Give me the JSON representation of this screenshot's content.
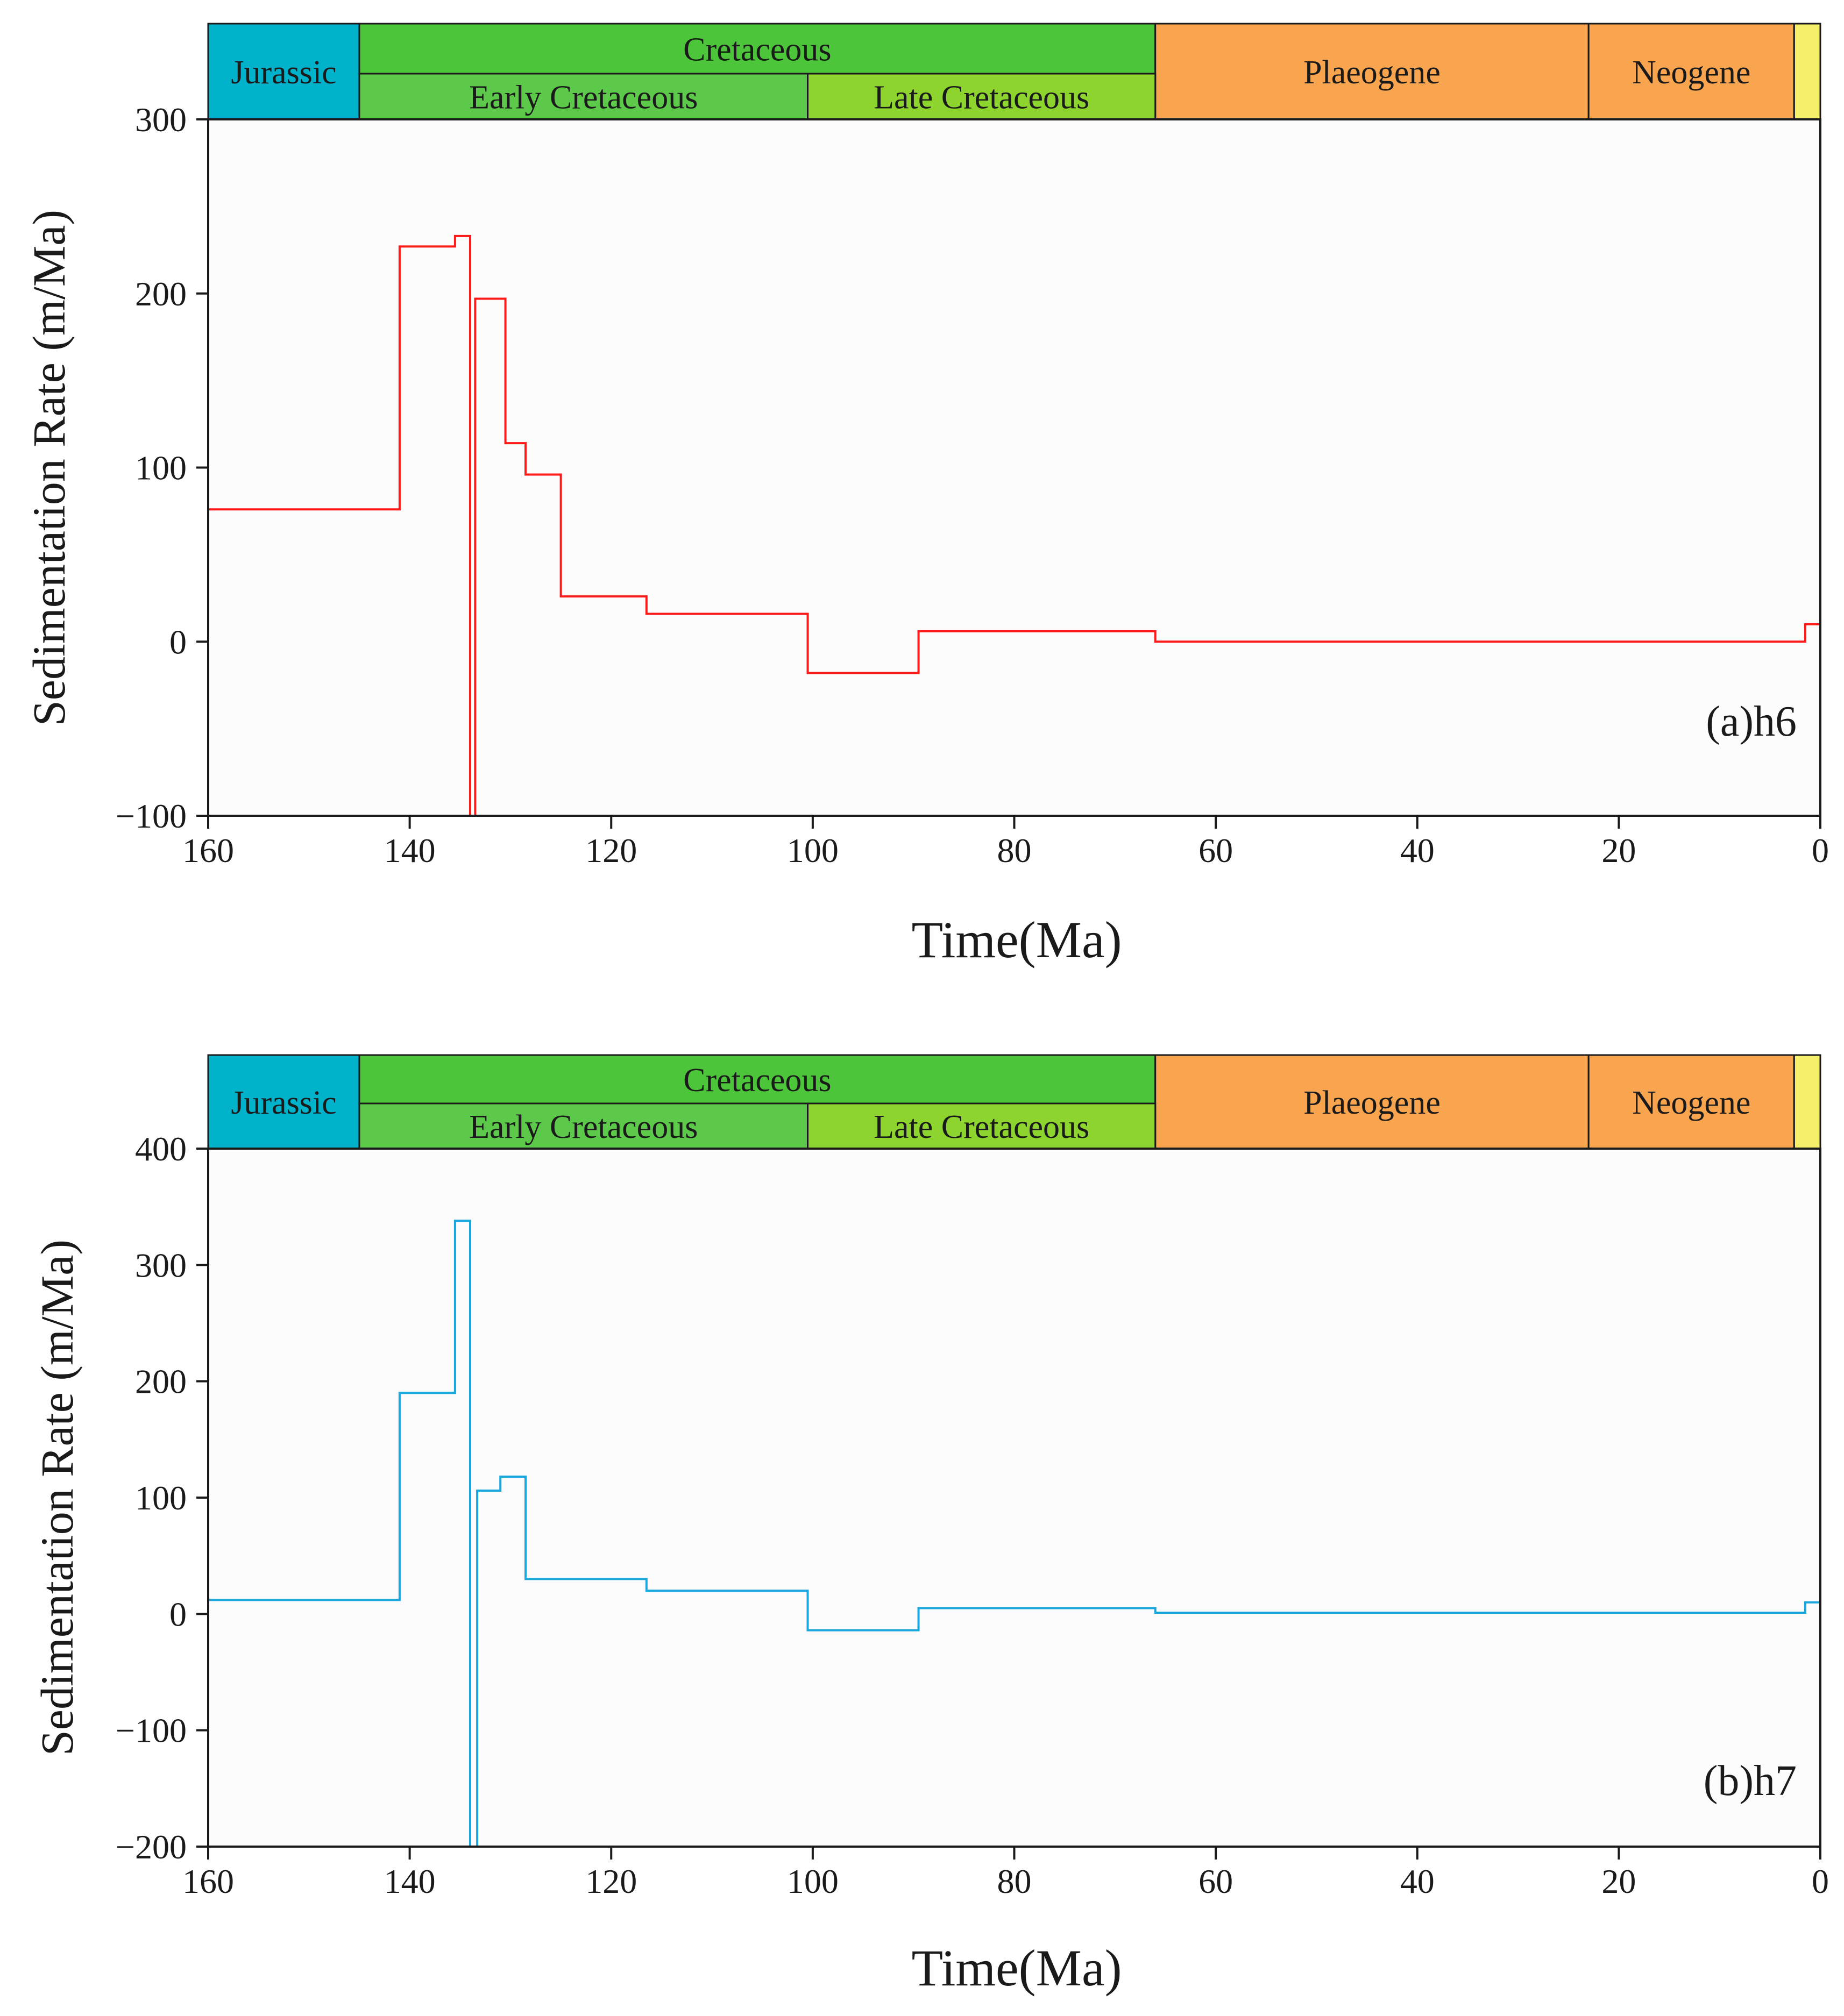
{
  "chart_data": [
    {
      "type": "line",
      "step": true,
      "title": "",
      "panel_label": "(a)h6",
      "xlabel": "Time(Ma)",
      "ylabel": "Sedimentation Rate (m/Ma)",
      "xlim": [
        160,
        0
      ],
      "ylim": [
        -100,
        300
      ],
      "xticks": [
        160,
        140,
        120,
        100,
        80,
        60,
        40,
        20,
        0
      ],
      "yticks": [
        300,
        200,
        100,
        0,
        -100
      ],
      "xtick_labels": [
        "160",
        "140",
        "120",
        "100",
        "80",
        "60",
        "40",
        "20",
        "0"
      ],
      "ytick_labels": [
        "300",
        "200",
        "100",
        "0",
        "−100"
      ],
      "color": "#ff1a1a",
      "series": [
        {
          "name": "h6",
          "steps": [
            {
              "from": 160,
              "to": 141,
              "value": 76
            },
            {
              "from": 141,
              "to": 135.5,
              "value": 227
            },
            {
              "from": 135.5,
              "to": 134,
              "value": 233
            },
            {
              "from": 134,
              "to": 133.5,
              "value": -100
            },
            {
              "from": 133.5,
              "to": 130.5,
              "value": 197
            },
            {
              "from": 130.5,
              "to": 128.5,
              "value": 114
            },
            {
              "from": 128.5,
              "to": 125,
              "value": 96
            },
            {
              "from": 125,
              "to": 116.5,
              "value": 26
            },
            {
              "from": 116.5,
              "to": 100.5,
              "value": 16
            },
            {
              "from": 100.5,
              "to": 89.5,
              "value": -18
            },
            {
              "from": 89.5,
              "to": 66,
              "value": 6
            },
            {
              "from": 66,
              "to": 1.5,
              "value": 0
            },
            {
              "from": 1.5,
              "to": 0,
              "value": 10
            }
          ]
        }
      ],
      "timescale": {
        "periods": [
          {
            "name": "Jurassic",
            "from": 160,
            "to": 145,
            "color": "#00b2ca"
          },
          {
            "name": "Cretaceous",
            "from": 145,
            "to": 66,
            "color": "#4cc53a"
          },
          {
            "name": "Plaeogene",
            "from": 66,
            "to": 23,
            "color": "#f9a54f"
          },
          {
            "name": "Neogene",
            "from": 23,
            "to": 2.6,
            "color": "#f9a54f"
          },
          {
            "name": "",
            "from": 2.6,
            "to": 0,
            "color": "#f5f06a"
          }
        ],
        "epochs": [
          {
            "name": "Early Cretaceous",
            "from": 145,
            "to": 100.5,
            "color": "#5cc94a"
          },
          {
            "name": "Late Cretaceous",
            "from": 100.5,
            "to": 66,
            "color": "#8dd42f"
          }
        ]
      }
    },
    {
      "type": "line",
      "step": true,
      "title": "",
      "panel_label": "(b)h7",
      "xlabel": "Time(Ma)",
      "ylabel": "Sedimentation Rate (m/Ma)",
      "xlim": [
        160,
        0
      ],
      "ylim": [
        -200,
        400
      ],
      "xticks": [
        160,
        140,
        120,
        100,
        80,
        60,
        40,
        20,
        0
      ],
      "yticks": [
        400,
        300,
        200,
        100,
        0,
        -100,
        -200
      ],
      "xtick_labels": [
        "160",
        "140",
        "120",
        "100",
        "80",
        "60",
        "40",
        "20",
        "0"
      ],
      "ytick_labels": [
        "400",
        "300",
        "200",
        "100",
        "0",
        "−100",
        "−200"
      ],
      "color": "#1aa7dd",
      "series": [
        {
          "name": "h7",
          "steps": [
            {
              "from": 160,
              "to": 141,
              "value": 12
            },
            {
              "from": 141,
              "to": 135.5,
              "value": 190
            },
            {
              "from": 135.5,
              "to": 134,
              "value": 338
            },
            {
              "from": 134,
              "to": 133.3,
              "value": -200
            },
            {
              "from": 133.3,
              "to": 131,
              "value": 106
            },
            {
              "from": 131,
              "to": 128.5,
              "value": 118
            },
            {
              "from": 128.5,
              "to": 116.5,
              "value": 30
            },
            {
              "from": 116.5,
              "to": 100.5,
              "value": 20
            },
            {
              "from": 100.5,
              "to": 89.5,
              "value": -14
            },
            {
              "from": 89.5,
              "to": 66,
              "value": 5
            },
            {
              "from": 66,
              "to": 1.5,
              "value": 1
            },
            {
              "from": 1.5,
              "to": 0,
              "value": 10
            }
          ]
        }
      ],
      "timescale": {
        "periods": [
          {
            "name": "Jurassic",
            "from": 160,
            "to": 145,
            "color": "#00b2ca"
          },
          {
            "name": "Cretaceous",
            "from": 145,
            "to": 66,
            "color": "#4cc53a"
          },
          {
            "name": "Plaeogene",
            "from": 66,
            "to": 23,
            "color": "#f9a54f"
          },
          {
            "name": "Neogene",
            "from": 23,
            "to": 2.6,
            "color": "#f9a54f"
          },
          {
            "name": "",
            "from": 2.6,
            "to": 0,
            "color": "#f5f06a"
          }
        ],
        "epochs": [
          {
            "name": "Early Cretaceous",
            "from": 145,
            "to": 100.5,
            "color": "#5cc94a"
          },
          {
            "name": "Late Cretaceous",
            "from": 100.5,
            "to": 66,
            "color": "#8dd42f"
          }
        ]
      }
    }
  ]
}
